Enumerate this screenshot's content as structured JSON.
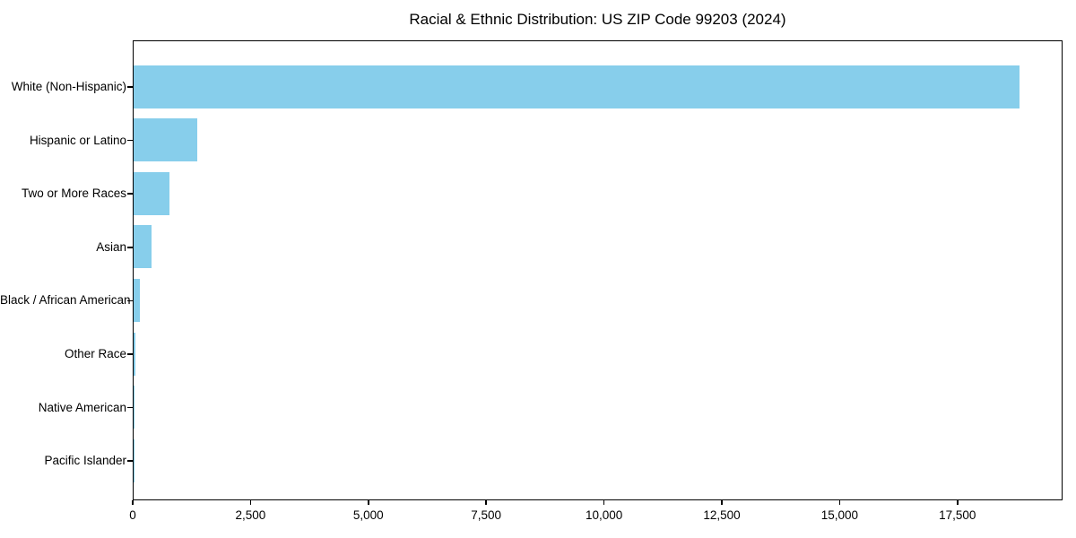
{
  "figure": {
    "title": "Racial & Ethnic Distribution: US ZIP Code 99203 (2024)",
    "background_color": "#FFFFFF"
  },
  "colors": {
    "bar": "#87CEEB",
    "axis": "#000000",
    "text": "#000000",
    "background": "#FFFFFF"
  },
  "chart_data": {
    "type": "bar",
    "orientation": "horizontal",
    "title": "Racial & Ethnic Distribution: US ZIP Code 99203 (2024)",
    "categories": [
      "White (Non-Hispanic)",
      "Hispanic or Latino",
      "Two or More Races",
      "Asian",
      "Black / African American",
      "Other Race",
      "Native American",
      "Pacific Islander"
    ],
    "values": [
      18790,
      1360,
      755,
      380,
      130,
      40,
      20,
      10
    ],
    "xlabel": "",
    "ylabel": "",
    "xlim": [
      0,
      19730
    ],
    "x_ticks": [
      0,
      2500,
      5000,
      7500,
      10000,
      12500,
      15000,
      17500
    ],
    "x_tick_labels": [
      "0",
      "2,500",
      "5,000",
      "7,500",
      "10,000",
      "12,500",
      "15,000",
      "17,500"
    ],
    "grid": false,
    "legend": "none",
    "bar_color": "#87CEEB",
    "axis_color": "#000000"
  }
}
